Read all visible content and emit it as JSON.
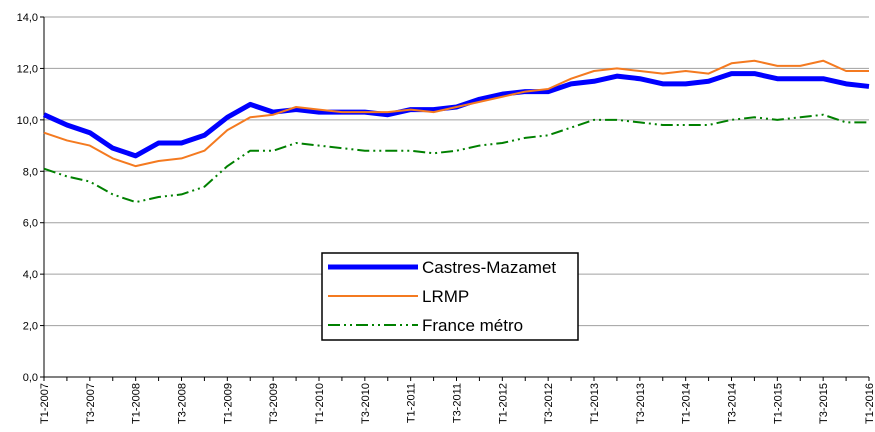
{
  "chart_data": {
    "type": "line",
    "categories": [
      "T1-2007",
      null,
      "T3-2007",
      null,
      "T1-2008",
      null,
      "T3-2008",
      null,
      "T1-2009",
      null,
      "T3-2009",
      null,
      "T1-2010",
      null,
      "T3-2010",
      null,
      "T1-2011",
      null,
      "T3-2011",
      null,
      "T1-2012",
      null,
      "T3-2012",
      null,
      "T1-2013",
      null,
      "T3-2013",
      null,
      "T1-2014",
      null,
      "T3-2014",
      null,
      "T1-2015",
      null,
      "T3-2015",
      null,
      "T1-2016"
    ],
    "series": [
      {
        "name": "Castres-Mazamet",
        "color": "#0000ff",
        "values": [
          10.2,
          9.8,
          9.5,
          8.9,
          8.6,
          9.1,
          9.1,
          9.4,
          10.1,
          10.6,
          10.3,
          10.4,
          10.3,
          10.3,
          10.3,
          10.2,
          10.4,
          10.4,
          10.5,
          10.8,
          11.0,
          11.1,
          11.1,
          11.4,
          11.5,
          11.7,
          11.6,
          11.4,
          11.4,
          11.5,
          11.8,
          11.8,
          11.6,
          11.6,
          11.6,
          11.4,
          11.3
        ]
      },
      {
        "name": "LRMP",
        "color": "#f47a20",
        "values": [
          9.5,
          9.2,
          9.0,
          8.5,
          8.2,
          8.4,
          8.5,
          8.8,
          9.6,
          10.1,
          10.2,
          10.5,
          10.4,
          10.3,
          10.3,
          10.3,
          10.4,
          10.3,
          10.5,
          10.7,
          10.9,
          11.1,
          11.2,
          11.6,
          11.9,
          12.0,
          11.9,
          11.8,
          11.9,
          11.8,
          12.2,
          12.3,
          12.1,
          12.1,
          12.3,
          11.9,
          11.9
        ]
      },
      {
        "name": "France métro",
        "color": "#008000",
        "values": [
          8.1,
          7.8,
          7.6,
          7.1,
          6.8,
          7.0,
          7.1,
          7.4,
          8.2,
          8.8,
          8.8,
          9.1,
          9.0,
          8.9,
          8.8,
          8.8,
          8.8,
          8.7,
          8.8,
          9.0,
          9.1,
          9.3,
          9.4,
          9.7,
          10.0,
          10.0,
          9.9,
          9.8,
          9.8,
          9.8,
          10.0,
          10.1,
          10.0,
          10.1,
          10.2,
          9.9,
          9.9
        ]
      }
    ],
    "ylim": [
      0,
      14
    ],
    "yticks": [
      {
        "value": 0,
        "label": "0,0"
      },
      {
        "value": 2,
        "label": "2,0"
      },
      {
        "value": 4,
        "label": "4,0"
      },
      {
        "value": 6,
        "label": "6,0"
      },
      {
        "value": 8,
        "label": "8,0"
      },
      {
        "value": 10,
        "label": "10,0"
      },
      {
        "value": 12,
        "label": "12,0"
      },
      {
        "value": 14,
        "label": "14,0"
      }
    ],
    "grid": true,
    "legend_position": "lower center"
  }
}
